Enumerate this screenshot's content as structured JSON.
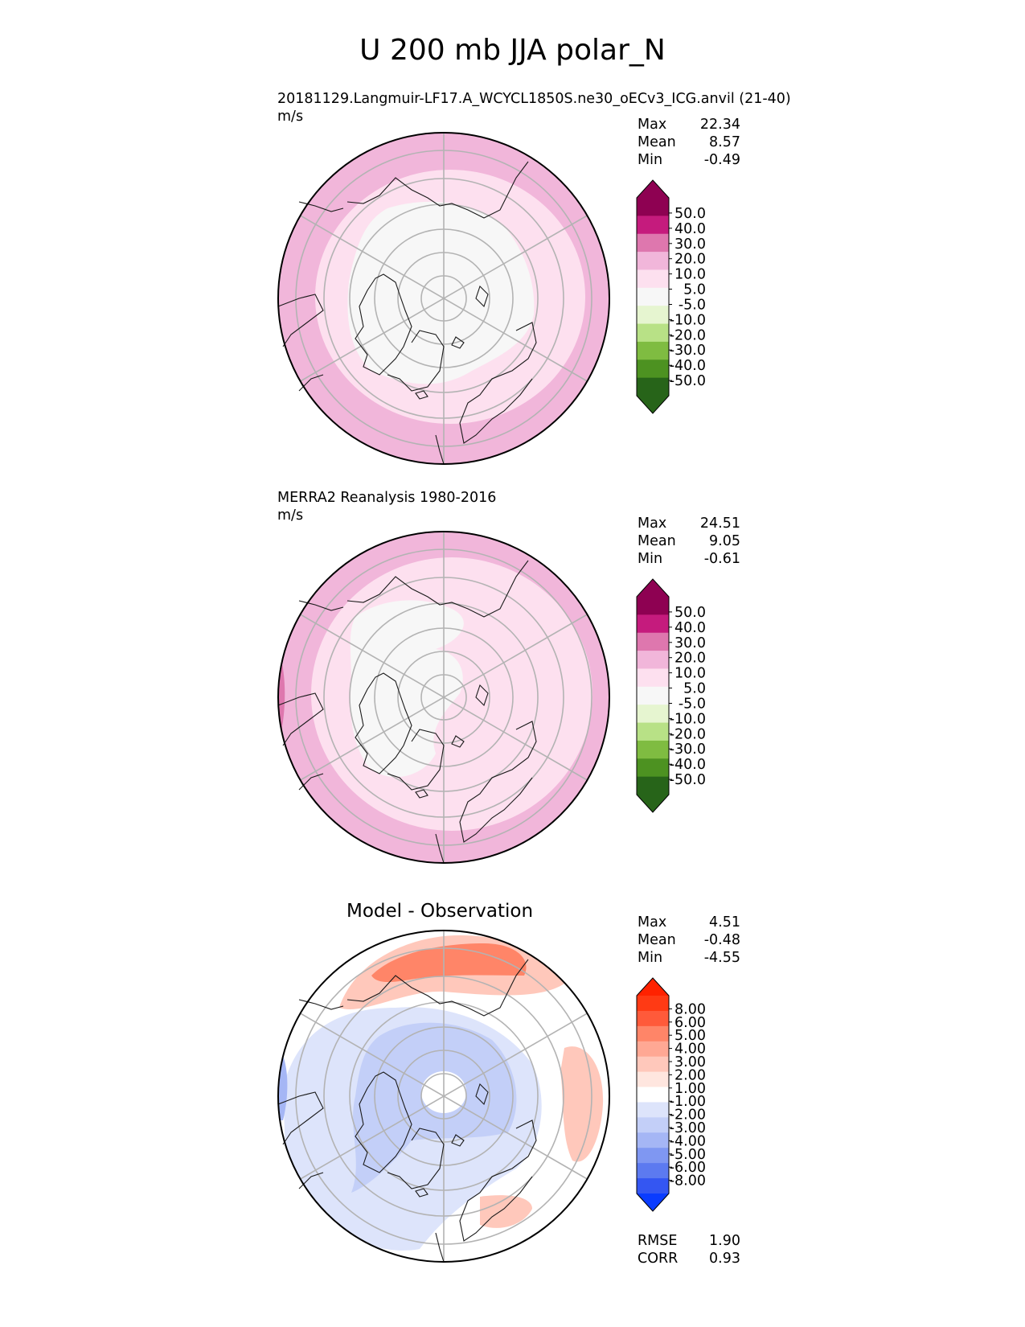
{
  "figure": {
    "title": "U 200 mb JJA polar_N"
  },
  "panels": [
    {
      "id": "model",
      "name": "20181129.Langmuir-LF17.A_WCYCL1850S.ne30_oECv3_ICG.anvil (21-40)",
      "units": "m/s",
      "center_title": "",
      "stats": [
        {
          "label": "Max",
          "value": "22.34"
        },
        {
          "label": "Mean",
          "value": "8.57"
        },
        {
          "label": "Min",
          "value": "-0.49"
        }
      ],
      "colorbar": {
        "ticks": [
          "50.0",
          "40.0",
          "30.0",
          "20.0",
          "10.0",
          "5.0",
          "-5.0",
          "-10.0",
          "-20.0",
          "-30.0",
          "-40.0",
          "-50.0"
        ],
        "colors": [
          "#8e0152",
          "#c51b7d",
          "#de77ae",
          "#f1b6da",
          "#fde0ef",
          "#f7f7f7",
          "#e6f5d0",
          "#b8e186",
          "#7fbc41",
          "#4d9221",
          "#276419"
        ],
        "extend_top": "#8e0152",
        "extend_bottom": "#276419"
      }
    },
    {
      "id": "obs",
      "name": "MERRA2 Reanalysis 1980-2016",
      "units": "m/s",
      "center_title": "",
      "stats": [
        {
          "label": "Max",
          "value": "24.51"
        },
        {
          "label": "Mean",
          "value": "9.05"
        },
        {
          "label": "Min",
          "value": "-0.61"
        }
      ],
      "colorbar": {
        "ticks": [
          "50.0",
          "40.0",
          "30.0",
          "20.0",
          "10.0",
          "5.0",
          "-5.0",
          "-10.0",
          "-20.0",
          "-30.0",
          "-40.0",
          "-50.0"
        ],
        "colors": [
          "#8e0152",
          "#c51b7d",
          "#de77ae",
          "#f1b6da",
          "#fde0ef",
          "#f7f7f7",
          "#e6f5d0",
          "#b8e186",
          "#7fbc41",
          "#4d9221",
          "#276419"
        ],
        "extend_top": "#8e0152",
        "extend_bottom": "#276419"
      }
    },
    {
      "id": "diff",
      "name": "",
      "units": "",
      "center_title": "Model - Observation",
      "stats": [
        {
          "label": "Max",
          "value": "4.51"
        },
        {
          "label": "Mean",
          "value": "-0.48"
        },
        {
          "label": "Min",
          "value": "-4.55"
        }
      ],
      "bottom_stats": [
        {
          "label": "RMSE",
          "value": "1.90"
        },
        {
          "label": "CORR",
          "value": "0.93"
        }
      ],
      "colorbar": {
        "ticks": [
          "8.00",
          "6.00",
          "5.00",
          "4.00",
          "3.00",
          "2.00",
          "1.00",
          "-1.00",
          "-2.00",
          "-3.00",
          "-4.00",
          "-5.00",
          "-6.00",
          "-8.00"
        ],
        "colors": [
          "#ff3a14",
          "#ff5a3a",
          "#ff8568",
          "#ffa894",
          "#ffc8bb",
          "#ffe6df",
          "#ffffff",
          "#dde4fb",
          "#c3cff8",
          "#a5b6f5",
          "#7f97f2",
          "#5c7af0",
          "#3456f2"
        ],
        "extend_top": "#ff2200",
        "extend_bottom": "#0a3cff"
      }
    }
  ]
}
